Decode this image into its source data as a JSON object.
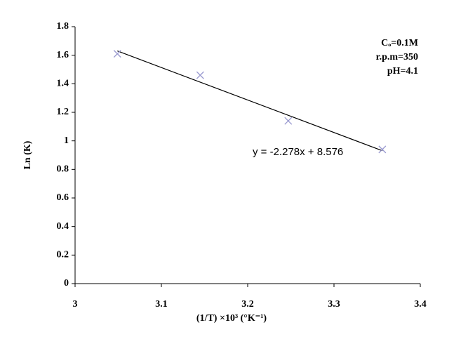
{
  "chart_data": {
    "type": "scatter",
    "x_label": "(1/T) ×10³ (°K⁻¹)",
    "y_label": "Ln (K)",
    "series": [
      {
        "color": "#9a9ad0",
        "x": [
          3.049,
          3.145,
          3.247,
          3.356
        ],
        "values": [
          1.61,
          1.46,
          1.14,
          0.94
        ]
      }
    ],
    "trendline": {
      "color": "#000000",
      "x": [
        3.049,
        3.356
      ],
      "values": [
        1.63,
        0.931
      ],
      "equation": "y = -2.278x + 8.576"
    },
    "annotations": [
      "Cₒ=0.1M",
      "r.p.m=350",
      "pH=4.1"
    ],
    "xlim": [
      3,
      3.4
    ],
    "xticks": [
      3,
      3.1,
      3.2,
      3.3,
      3.4
    ],
    "ylim": [
      0,
      1.8
    ],
    "yticks": [
      0,
      0.2,
      0.4,
      0.6,
      0.8,
      1,
      1.2,
      1.4,
      1.6,
      1.8
    ],
    "grid": false
  }
}
